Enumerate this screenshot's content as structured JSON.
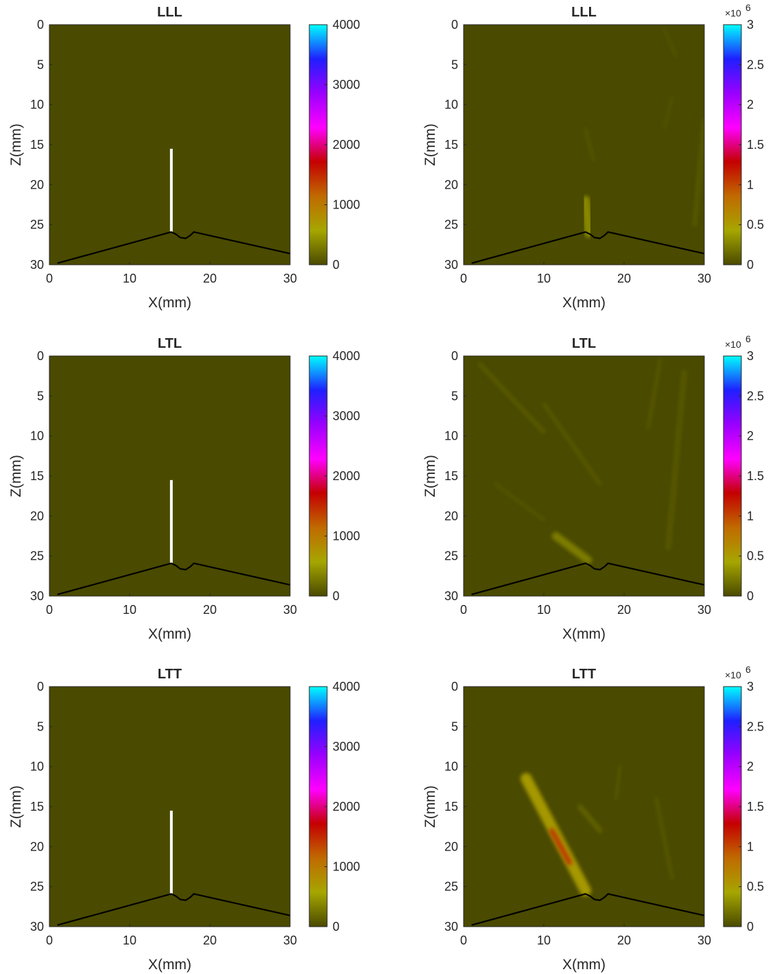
{
  "colors": {
    "background_zero": "#4a4a00",
    "geometry_line": "#000000",
    "crack": "#ffffff",
    "colormap": [
      "#4a4a00",
      "#a6a600",
      "#c06a00",
      "#c40000",
      "#ff00ff",
      "#9a00ff",
      "#1f1fff",
      "#00ffff"
    ]
  },
  "chart_data": [
    {
      "type": "heatmap",
      "title": "LLL",
      "xlabel": "X(mm)",
      "ylabel": "Z(mm)",
      "xlim": [
        0,
        30
      ],
      "ylim": [
        30,
        0
      ],
      "xticks": [
        "0",
        "10",
        "20",
        "30"
      ],
      "yticks": [
        "0",
        "5",
        "10",
        "15",
        "20",
        "25",
        "30"
      ],
      "colorbar": {
        "min": 0,
        "max": 4000,
        "ticks": [
          "0",
          "1000",
          "2000",
          "3000",
          "4000"
        ],
        "exponent": ""
      },
      "crack": {
        "x": 15.2,
        "z_top": 15.5,
        "z_bottom": 25.9
      },
      "features": []
    },
    {
      "type": "heatmap",
      "title": "LLL",
      "xlabel": "X(mm)",
      "ylabel": "Z(mm)",
      "xlim": [
        0,
        30
      ],
      "ylim": [
        30,
        0
      ],
      "xticks": [
        "0",
        "10",
        "20",
        "30"
      ],
      "yticks": [
        "0",
        "5",
        "10",
        "15",
        "20",
        "25",
        "30"
      ],
      "colorbar": {
        "min": 0,
        "max": 3000000,
        "ticks": [
          "0",
          "0.5",
          "1",
          "1.5",
          "2",
          "2.5",
          "3"
        ],
        "exponent": "6"
      },
      "features": [
        {
          "x1": 15.2,
          "z1": 22.0,
          "x2": 15.6,
          "z2": 26.0,
          "width": 1.2,
          "value": 300000
        },
        {
          "x1": 25.0,
          "z1": 0.5,
          "x2": 26.5,
          "z2": 4.0,
          "width": 0.3,
          "value": 60000
        },
        {
          "x1": 26.0,
          "z1": 9.0,
          "x2": 25.0,
          "z2": 13.0,
          "width": 0.3,
          "value": 60000
        },
        {
          "x1": 30.0,
          "z1": 12.0,
          "x2": 28.8,
          "z2": 25.0,
          "width": 0.6,
          "value": 70000
        },
        {
          "x1": 15.2,
          "z1": 13.0,
          "x2": 16.2,
          "z2": 17.0,
          "width": 0.4,
          "value": 60000
        }
      ]
    },
    {
      "type": "heatmap",
      "title": "LTL",
      "xlabel": "X(mm)",
      "ylabel": "Z(mm)",
      "xlim": [
        0,
        30
      ],
      "ylim": [
        30,
        0
      ],
      "xticks": [
        "0",
        "10",
        "20",
        "30"
      ],
      "yticks": [
        "0",
        "5",
        "10",
        "15",
        "20",
        "25",
        "30"
      ],
      "colorbar": {
        "min": 0,
        "max": 4000,
        "ticks": [
          "0",
          "1000",
          "2000",
          "3000",
          "4000"
        ],
        "exponent": ""
      },
      "crack": {
        "x": 15.2,
        "z_top": 15.5,
        "z_bottom": 25.9
      },
      "features": []
    },
    {
      "type": "heatmap",
      "title": "LTL",
      "xlabel": "X(mm)",
      "ylabel": "Z(mm)",
      "xlim": [
        0,
        30
      ],
      "ylim": [
        30,
        0
      ],
      "xticks": [
        "0",
        "10",
        "20",
        "30"
      ],
      "yticks": [
        "0",
        "5",
        "10",
        "15",
        "20",
        "25",
        "30"
      ],
      "colorbar": {
        "min": 0,
        "max": 3000000,
        "ticks": [
          "0",
          "0.5",
          "1",
          "1.5",
          "2",
          "2.5",
          "3"
        ],
        "exponent": "6"
      },
      "features": [
        {
          "x1": 11.5,
          "z1": 22.5,
          "x2": 15.5,
          "z2": 25.5,
          "width": 1.0,
          "value": 250000
        },
        {
          "x1": 2.0,
          "z1": 1.0,
          "x2": 10.0,
          "z2": 9.5,
          "width": 0.5,
          "value": 80000
        },
        {
          "x1": 10.0,
          "z1": 6.0,
          "x2": 17.0,
          "z2": 16.0,
          "width": 0.5,
          "value": 70000
        },
        {
          "x1": 4.0,
          "z1": 16.0,
          "x2": 10.0,
          "z2": 20.5,
          "width": 0.4,
          "value": 60000
        },
        {
          "x1": 24.5,
          "z1": 0.5,
          "x2": 23.0,
          "z2": 9.0,
          "width": 0.5,
          "value": 60000
        },
        {
          "x1": 27.5,
          "z1": 2.0,
          "x2": 25.5,
          "z2": 24.0,
          "width": 0.7,
          "value": 70000
        }
      ]
    },
    {
      "type": "heatmap",
      "title": "LTT",
      "xlabel": "X(mm)",
      "ylabel": "Z(mm)",
      "xlim": [
        0,
        30
      ],
      "ylim": [
        30,
        0
      ],
      "xticks": [
        "0",
        "10",
        "20",
        "30"
      ],
      "yticks": [
        "0",
        "5",
        "10",
        "15",
        "20",
        "25",
        "30"
      ],
      "colorbar": {
        "min": 0,
        "max": 4000,
        "ticks": [
          "0",
          "1000",
          "2000",
          "3000",
          "4000"
        ],
        "exponent": ""
      },
      "crack": {
        "x": 15.2,
        "z_top": 15.5,
        "z_bottom": 25.9
      },
      "features": []
    },
    {
      "type": "heatmap",
      "title": "LTT",
      "xlabel": "X(mm)",
      "ylabel": "Z(mm)",
      "xlim": [
        0,
        30
      ],
      "ylim": [
        30,
        0
      ],
      "xticks": [
        "0",
        "10",
        "20",
        "30"
      ],
      "yticks": [
        "0",
        "5",
        "10",
        "15",
        "20",
        "25",
        "30"
      ],
      "colorbar": {
        "min": 0,
        "max": 3000000,
        "ticks": [
          "0",
          "0.5",
          "1",
          "1.5",
          "2",
          "2.5",
          "3"
        ],
        "exponent": "6"
      },
      "features": [
        {
          "x1": 7.8,
          "z1": 11.5,
          "x2": 15.2,
          "z2": 25.5,
          "width": 1.4,
          "value": 500000
        },
        {
          "x1": 11.0,
          "z1": 18.0,
          "x2": 13.2,
          "z2": 22.0,
          "width": 0.6,
          "value": 1100000
        },
        {
          "x1": 14.5,
          "z1": 15.0,
          "x2": 17.0,
          "z2": 18.0,
          "width": 0.6,
          "value": 120000
        },
        {
          "x1": 19.5,
          "z1": 10.0,
          "x2": 19.0,
          "z2": 14.0,
          "width": 0.4,
          "value": 70000
        },
        {
          "x1": 24.0,
          "z1": 14.0,
          "x2": 26.0,
          "z2": 24.0,
          "width": 0.5,
          "value": 60000
        }
      ]
    }
  ]
}
